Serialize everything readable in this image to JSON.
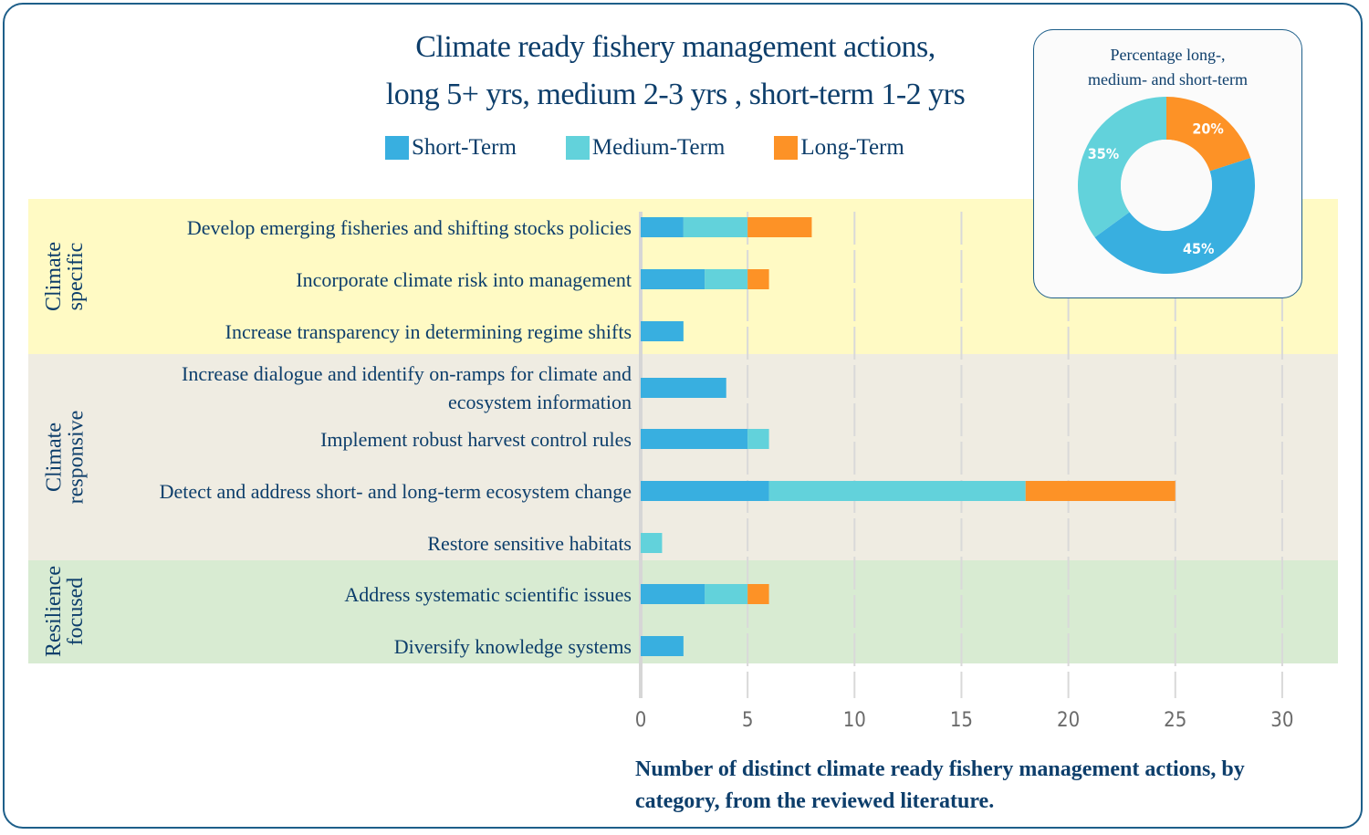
{
  "chart_data": [
    {
      "type": "bar",
      "orientation": "horizontal-stacked",
      "title": "Climate ready fishery management actions, long 5+ yrs, medium 2-3 yrs , short-term 1-2 yrs",
      "title_lines": [
        "Climate ready fishery management actions,",
        "long 5+ yrs, medium 2-3 yrs , short-term 1-2 yrs"
      ],
      "xlabel": "Number of distinct climate ready fishery management actions, by category, from the reviewed literature.",
      "xlim": [
        0,
        30
      ],
      "xticks": [
        0,
        5,
        10,
        15,
        20,
        25,
        30
      ],
      "grid": true,
      "legend_position": "top",
      "groups": [
        {
          "label": "Climate specific",
          "lines": [
            "Climate",
            "specific"
          ],
          "color": "#fffac4",
          "rows": 3
        },
        {
          "label": "Climate responsive",
          "lines": [
            "Climate",
            "responsive"
          ],
          "color": "#efece2",
          "rows": 4
        },
        {
          "label": "Resilience focused",
          "lines": [
            "Resilience",
            "focused"
          ],
          "color": "#d8ebd2",
          "rows": 2
        }
      ],
      "categories": [
        "Develop emerging fisheries and shifting stocks policies",
        "Incorporate climate risk into management",
        "Increase transparency in determining regime shifts",
        "Increase dialogue and identify on-ramps for climate and ecosystem information",
        "Implement robust harvest control rules",
        "Detect and address short- and long-term ecosystem change",
        "Restore sensitive habitats",
        "Address systematic scientific issues",
        "Diversify knowledge systems"
      ],
      "category_lines": [
        [
          "Develop emerging fisheries and shifting stocks policies"
        ],
        [
          "Incorporate climate risk into management"
        ],
        [
          "Increase transparency in determining regime shifts"
        ],
        [
          "Increase dialogue and identify on-ramps for climate and",
          "ecosystem information"
        ],
        [
          "Implement robust harvest control rules"
        ],
        [
          "Detect and address short- and long-term ecosystem change"
        ],
        [
          "Restore sensitive habitats"
        ],
        [
          "Address systematic scientific issues"
        ],
        [
          "Diversify knowledge systems"
        ]
      ],
      "series": [
        {
          "name": "Short-Term",
          "color": "#38afe0",
          "values": [
            2,
            3,
            2,
            4,
            5,
            6,
            0,
            3,
            2
          ]
        },
        {
          "name": "Medium-Term",
          "color": "#62d2db",
          "values": [
            3,
            2,
            0,
            0,
            1,
            12,
            1,
            2,
            0
          ]
        },
        {
          "name": "Long-Term",
          "color": "#fd9226",
          "values": [
            3,
            1,
            0,
            0,
            0,
            7,
            0,
            1,
            0
          ]
        }
      ]
    },
    {
      "type": "pie",
      "donut": true,
      "title": "Percentage long-, medium- and short-term",
      "title_lines": [
        "Percentage long-,",
        "medium- and short-term"
      ],
      "slices": [
        {
          "name": "Long-Term",
          "value": 20,
          "label": "20%",
          "color": "#fd9226"
        },
        {
          "name": "Short-Term",
          "value": 45,
          "label": "45%",
          "color": "#38afe0"
        },
        {
          "name": "Medium-Term",
          "value": 35,
          "label": "35%",
          "color": "#62d2db"
        }
      ]
    }
  ]
}
